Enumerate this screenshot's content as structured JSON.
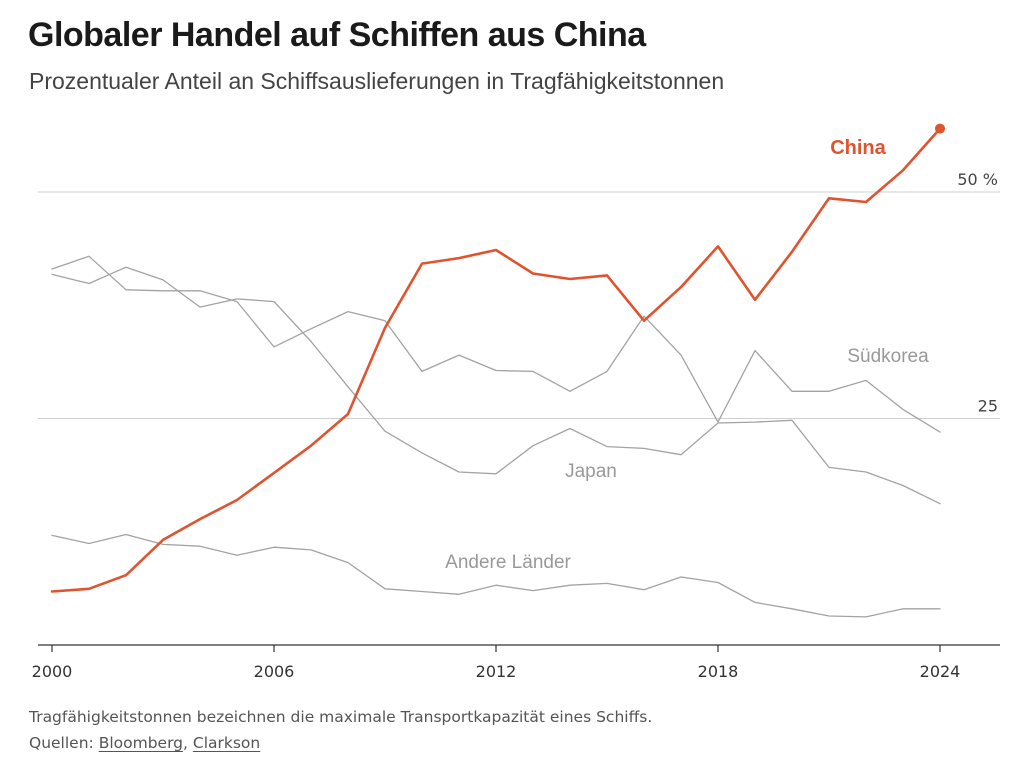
{
  "header": {
    "title": "Globaler Handel auf Schiffen aus China",
    "subtitle": "Prozentualer Anteil an Schiffsauslieferungen in Tragfähigkeitstonnen"
  },
  "footer": {
    "note": "Tragfähigkeitstonnen bezeichnen die maximale Transportkapazität eines Schiffs.",
    "sources_label": "Quellen: ",
    "sources_separator": ", ",
    "sources": [
      "Bloomberg",
      "Clarkson"
    ]
  },
  "chart_data": {
    "type": "line",
    "title": "Globaler Handel auf Schiffen aus China",
    "subtitle": "Prozentualer Anteil an Schiffsauslieferungen in Tragfähigkeitstonnen",
    "x": [
      2000,
      2001,
      2002,
      2003,
      2004,
      2005,
      2006,
      2007,
      2008,
      2009,
      2010,
      2011,
      2012,
      2013,
      2014,
      2015,
      2016,
      2017,
      2018,
      2019,
      2020,
      2021,
      2022,
      2023,
      2024
    ],
    "xticks": [
      {
        "value": 2000,
        "label": "2000"
      },
      {
        "value": 2006,
        "label": "2006"
      },
      {
        "value": 2012,
        "label": "2012"
      },
      {
        "value": 2018,
        "label": "2018"
      },
      {
        "value": 2024,
        "label": "2024"
      }
    ],
    "yticks": [
      {
        "value": 25,
        "label": "25"
      },
      {
        "value": 50,
        "label": "50 %"
      }
    ],
    "xlim": [
      2000,
      2024
    ],
    "ylim": [
      0,
      57
    ],
    "grid": true,
    "legend": "inline labels",
    "colors": {
      "highlight": "#e0532f",
      "secondary": "#a3a3a3",
      "grid": "#d0d0d0",
      "axis": "#333333"
    },
    "series": [
      {
        "name": "China",
        "highlight": true,
        "values": [
          5.9,
          6.2,
          7.7,
          11.6,
          13.9,
          16.0,
          19.0,
          22.0,
          25.5,
          35.0,
          42.1,
          42.7,
          43.6,
          41.0,
          40.4,
          40.8,
          35.8,
          39.5,
          44.0,
          38.1,
          43.4,
          49.3,
          48.9,
          52.4,
          57.0
        ]
      },
      {
        "name": "Südkorea",
        "highlight": false,
        "values": [
          41.5,
          42.9,
          39.2,
          39.1,
          39.1,
          37.9,
          32.9,
          34.9,
          36.8,
          35.8,
          30.2,
          32.0,
          30.3,
          30.2,
          28.0,
          30.2,
          36.3,
          32.0,
          24.6,
          32.5,
          28.0,
          28.0,
          29.2,
          26.0,
          23.5
        ]
      },
      {
        "name": "Japan",
        "highlight": false,
        "values": [
          40.9,
          39.9,
          41.7,
          40.3,
          37.3,
          38.2,
          37.9,
          33.5,
          28.5,
          23.6,
          21.2,
          19.1,
          18.9,
          22.0,
          23.9,
          21.9,
          21.7,
          21.0,
          24.5,
          24.6,
          24.8,
          19.6,
          19.1,
          17.6,
          15.6
        ]
      },
      {
        "name": "Andere Länder",
        "highlight": false,
        "values": [
          12.1,
          11.2,
          12.2,
          11.1,
          10.9,
          9.9,
          10.8,
          10.5,
          9.1,
          6.2,
          5.9,
          5.6,
          6.6,
          6.0,
          6.6,
          6.8,
          6.1,
          7.5,
          6.9,
          4.7,
          4.0,
          3.2,
          3.1,
          4.0,
          4.0
        ]
      }
    ]
  }
}
